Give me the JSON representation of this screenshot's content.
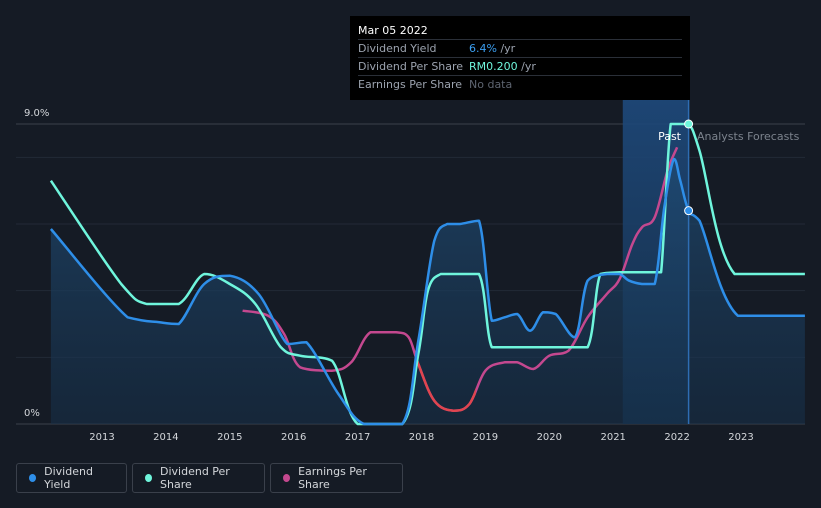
{
  "tooltip": {
    "date": "Mar 05 2022",
    "rows": [
      {
        "label": "Dividend Yield",
        "value": "6.4%",
        "unit": " /yr"
      },
      {
        "label": "Dividend Per Share",
        "value": "RM0.200",
        "unit": " /yr"
      },
      {
        "label": "Earnings Per Share",
        "value": "No data",
        "unit": ""
      }
    ]
  },
  "legend": [
    {
      "label": "Dividend Yield",
      "color": "#2e8ee8"
    },
    {
      "label": "Dividend Per Share",
      "color": "#6ff5dc"
    },
    {
      "label": "Earnings Per Share",
      "color": "#c4488f"
    }
  ],
  "colors": {
    "background": "#151b25",
    "yield": "#2e8ee8",
    "dps": "#6ff5dc",
    "eps": "#c4488f",
    "eps_low": "#e0454f",
    "highlight_band": "#1c3d66"
  },
  "chart_data": {
    "type": "line",
    "ylim": [
      0,
      9.0
    ],
    "y_tick_labels": [
      "9.0%",
      "0%"
    ],
    "x_tick_labels": [
      "2013",
      "2014",
      "2015",
      "2016",
      "2017",
      "2018",
      "2019",
      "2020",
      "2021",
      "2022",
      "2023"
    ],
    "xlim": [
      2012.2,
      2024.0
    ],
    "region_labels": {
      "past": "Past",
      "forecast": "Analysts Forecasts"
    },
    "highlight_range": [
      2021.15,
      2022.18
    ],
    "marker_x": 2022.18,
    "series": [
      {
        "name": "Dividend Yield",
        "x": [
          2012.2,
          2013.4,
          2013.9,
          2014.2,
          2014.6,
          2015.0,
          2015.45,
          2015.9,
          2016.2,
          2016.7,
          2017.1,
          2017.7,
          2017.95,
          2018.2,
          2018.4,
          2018.6,
          2018.9,
          2019.1,
          2019.3,
          2019.5,
          2019.7,
          2019.9,
          2020.1,
          2020.4,
          2020.6,
          2020.9,
          2021.1,
          2021.25,
          2021.45,
          2021.65,
          2021.8,
          2021.95,
          2022.05,
          2022.18,
          2022.35,
          2022.95,
          2024.0
        ],
        "values": [
          5.85,
          3.2,
          3.05,
          3.0,
          4.2,
          4.45,
          3.9,
          2.4,
          2.45,
          0.9,
          0.0,
          0.0,
          2.5,
          5.5,
          6.0,
          6.0,
          6.1,
          3.1,
          3.2,
          3.3,
          2.8,
          3.35,
          3.3,
          2.6,
          4.3,
          4.5,
          4.5,
          4.3,
          4.2,
          4.2,
          6.5,
          7.95,
          7.3,
          6.4,
          6.1,
          3.25,
          3.25
        ]
      },
      {
        "name": "Dividend Per Share",
        "x": [
          2012.2,
          2013.3,
          2013.7,
          2014.2,
          2014.6,
          2015.0,
          2015.4,
          2015.8,
          2016.1,
          2016.6,
          2017.0,
          2017.7,
          2017.95,
          2018.1,
          2018.3,
          2018.5,
          2018.9,
          2019.1,
          2019.4,
          2019.8,
          2020.2,
          2020.6,
          2020.8,
          2021.1,
          2021.3,
          2021.65,
          2021.75,
          2021.9,
          2022.05,
          2022.18,
          2022.35,
          2022.9,
          2024.0
        ],
        "values": [
          7.3,
          4.2,
          3.6,
          3.6,
          4.5,
          4.2,
          3.6,
          2.3,
          2.05,
          1.9,
          0.0,
          0.0,
          2.1,
          4.0,
          4.5,
          4.5,
          4.5,
          2.3,
          2.3,
          2.3,
          2.3,
          2.3,
          4.5,
          4.55,
          4.55,
          4.55,
          4.55,
          9.0,
          9.0,
          9.0,
          8.2,
          4.5,
          4.5
        ]
      },
      {
        "name": "Earnings Per Share",
        "x": [
          2015.2,
          2015.6,
          2015.85,
          2016.1,
          2016.6,
          2016.9,
          2017.2,
          2017.6,
          2017.8,
          2017.95,
          2018.2,
          2018.5,
          2018.75,
          2019.0,
          2019.3,
          2019.5,
          2019.75,
          2020.0,
          2020.3,
          2020.6,
          2020.9,
          2021.1,
          2021.3,
          2021.45,
          2021.65,
          2021.85,
          2022.0
        ],
        "values": [
          3.4,
          3.25,
          2.7,
          1.7,
          1.6,
          1.85,
          2.75,
          2.75,
          2.6,
          1.8,
          0.7,
          0.4,
          0.6,
          1.6,
          1.85,
          1.85,
          1.65,
          2.05,
          2.2,
          3.2,
          3.9,
          4.35,
          5.4,
          5.9,
          6.2,
          7.6,
          8.3
        ]
      }
    ]
  }
}
